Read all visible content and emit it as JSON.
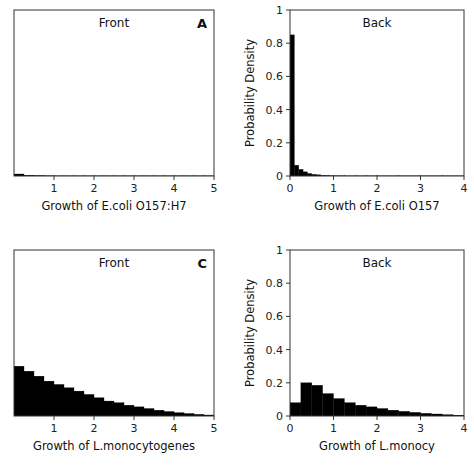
{
  "chart_data": [
    {
      "type": "histogram",
      "title": "Front",
      "annotation": "A",
      "x_label": "Growth of E.coli O157:H7",
      "xlim": [
        0,
        5
      ],
      "ylim": [
        0,
        1
      ],
      "xticks": [
        1,
        2,
        3,
        4,
        5
      ],
      "tick_labels": "x",
      "grid": false,
      "color": "#000000",
      "bins": [
        0,
        0.25,
        0.5,
        0.75,
        1.0,
        1.25,
        1.5,
        1.75,
        2.0,
        2.25,
        2.5,
        2.75,
        3.0,
        3.25,
        3.5,
        3.75,
        4.0,
        4.25,
        4.5,
        4.75,
        5.0
      ],
      "values": [
        0.012,
        0.005,
        0.003,
        0.002,
        0.001,
        0.001,
        0.001,
        0.001,
        0.001,
        0.001,
        0.001,
        0.001,
        0.001,
        0.001,
        0.001,
        0.001,
        0.001,
        0.001,
        0.001,
        0.001
      ]
    },
    {
      "type": "histogram",
      "title": "Back",
      "x_label": "Growth of E.coli O157",
      "y_label": "Probability Density",
      "xlim": [
        0,
        4
      ],
      "ylim": [
        0,
        1
      ],
      "xticks": [
        0,
        1,
        2,
        3,
        4
      ],
      "yticks": [
        0,
        0.2,
        0.4,
        0.6,
        0.8,
        1
      ],
      "grid": false,
      "color": "#000000",
      "bins": [
        0.0,
        0.1,
        0.2,
        0.3,
        0.4,
        0.5,
        0.6,
        0.7,
        0.8,
        0.9,
        1.0,
        1.25,
        1.5,
        1.75,
        2.0,
        2.5,
        3.0,
        3.5,
        4.0
      ],
      "values": [
        0.85,
        0.065,
        0.04,
        0.025,
        0.015,
        0.01,
        0.007,
        0.004,
        0.003,
        0.002,
        0.002,
        0.001,
        0.001,
        0.001,
        0.001,
        0.001,
        0.001,
        0.001
      ]
    },
    {
      "type": "histogram",
      "title": "Front",
      "annotation": "C",
      "x_label": "Growth of L.monocytogenes",
      "xlim": [
        0,
        5
      ],
      "ylim": [
        0,
        1
      ],
      "xticks": [
        1,
        2,
        3,
        4,
        5
      ],
      "tick_labels": "x",
      "grid": false,
      "color": "#000000",
      "bins": [
        0,
        0.25,
        0.5,
        0.75,
        1.0,
        1.25,
        1.5,
        1.75,
        2.0,
        2.25,
        2.5,
        2.75,
        3.0,
        3.25,
        3.5,
        3.75,
        4.0,
        4.25,
        4.5,
        4.75,
        5.0
      ],
      "values": [
        0.3,
        0.27,
        0.24,
        0.21,
        0.19,
        0.17,
        0.15,
        0.13,
        0.11,
        0.09,
        0.08,
        0.065,
        0.055,
        0.045,
        0.035,
        0.027,
        0.02,
        0.015,
        0.01,
        0.006
      ]
    },
    {
      "type": "histogram",
      "title": "Back",
      "x_label": "Growth of L.monocy",
      "y_label": "Probability Density",
      "xlim": [
        0,
        4
      ],
      "ylim": [
        0,
        1
      ],
      "xticks": [
        0,
        1,
        2,
        3,
        4
      ],
      "yticks": [
        0,
        0.2,
        0.4,
        0.6,
        0.8,
        1
      ],
      "grid": false,
      "color": "#000000",
      "bins": [
        0.0,
        0.25,
        0.5,
        0.75,
        1.0,
        1.25,
        1.5,
        1.75,
        2.0,
        2.25,
        2.5,
        2.75,
        3.0,
        3.25,
        3.5,
        3.75,
        4.0
      ],
      "values": [
        0.08,
        0.2,
        0.185,
        0.135,
        0.105,
        0.08,
        0.065,
        0.055,
        0.045,
        0.035,
        0.028,
        0.022,
        0.016,
        0.012,
        0.008,
        0.005
      ]
    }
  ]
}
